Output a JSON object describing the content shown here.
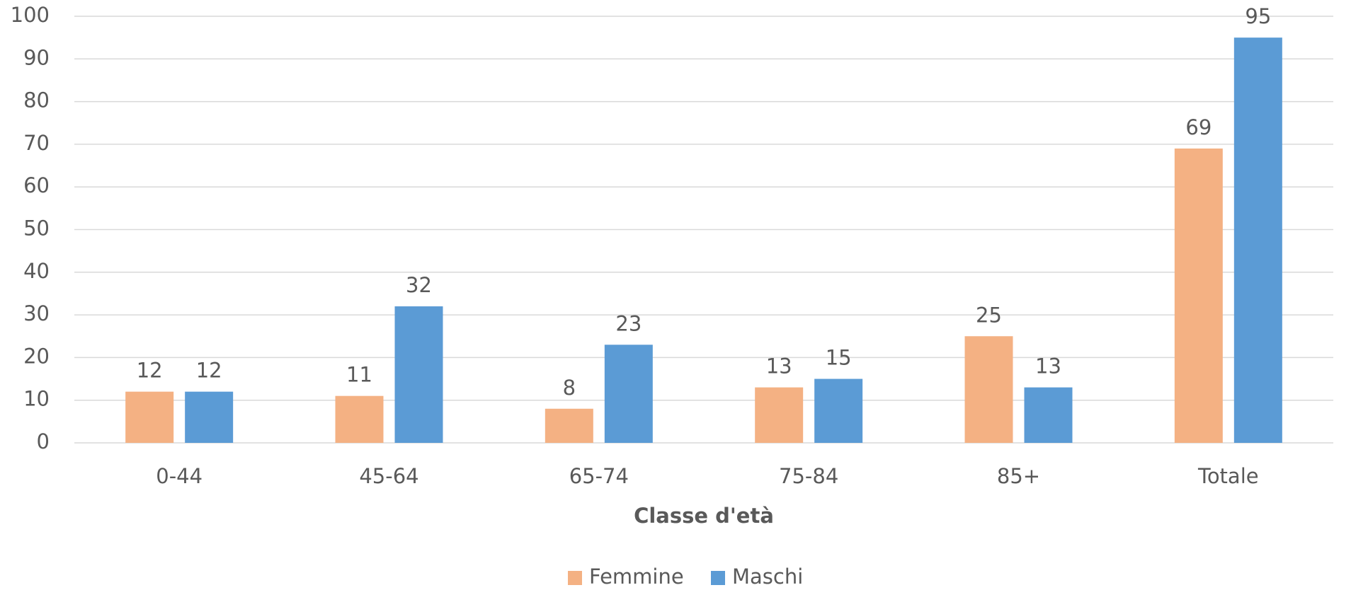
{
  "chart_data": {
    "type": "bar",
    "x_label": "Classe d'età",
    "categories": [
      "0-44",
      "45-64",
      "65-74",
      "75-84",
      "85+",
      "Totale"
    ],
    "series": [
      {
        "name": "Femmine",
        "color": "#F4B183",
        "values": [
          12,
          11,
          8,
          13,
          25,
          69
        ]
      },
      {
        "name": "Maschi",
        "color": "#5B9BD5",
        "values": [
          12,
          32,
          23,
          15,
          13,
          95
        ]
      }
    ],
    "ylim": [
      0,
      100
    ],
    "yticks": [
      0,
      10,
      20,
      30,
      40,
      50,
      60,
      70,
      80,
      90,
      100
    ],
    "grid": true,
    "legend": "bottom"
  }
}
